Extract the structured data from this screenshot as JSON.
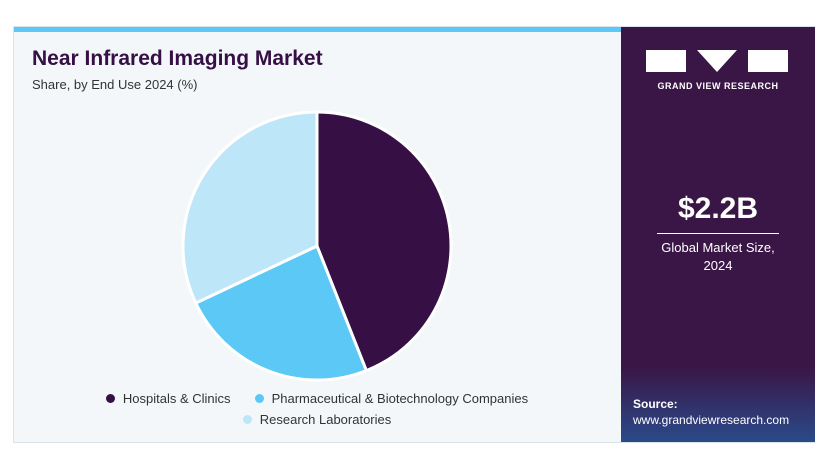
{
  "chart_data": {
    "type": "pie",
    "title": "Near Infrared Imaging Market",
    "subtitle": "Share, by End Use 2024 (%)",
    "categories": [
      "Hospitals & Clinics",
      "Pharmaceutical & Biotechnology Companies",
      "Research Laboratories"
    ],
    "values": [
      44,
      24,
      32
    ],
    "colors": [
      "#360f45",
      "#5bc8f5",
      "#bde6f8"
    ],
    "legend": "bottom"
  },
  "sidebar": {
    "brand": "GRAND VIEW RESEARCH",
    "market_size": "$2.2B",
    "market_size_label": "Global Market Size, 2024",
    "source_label": "Source:",
    "source_url": "www.grandviewresearch.com"
  }
}
